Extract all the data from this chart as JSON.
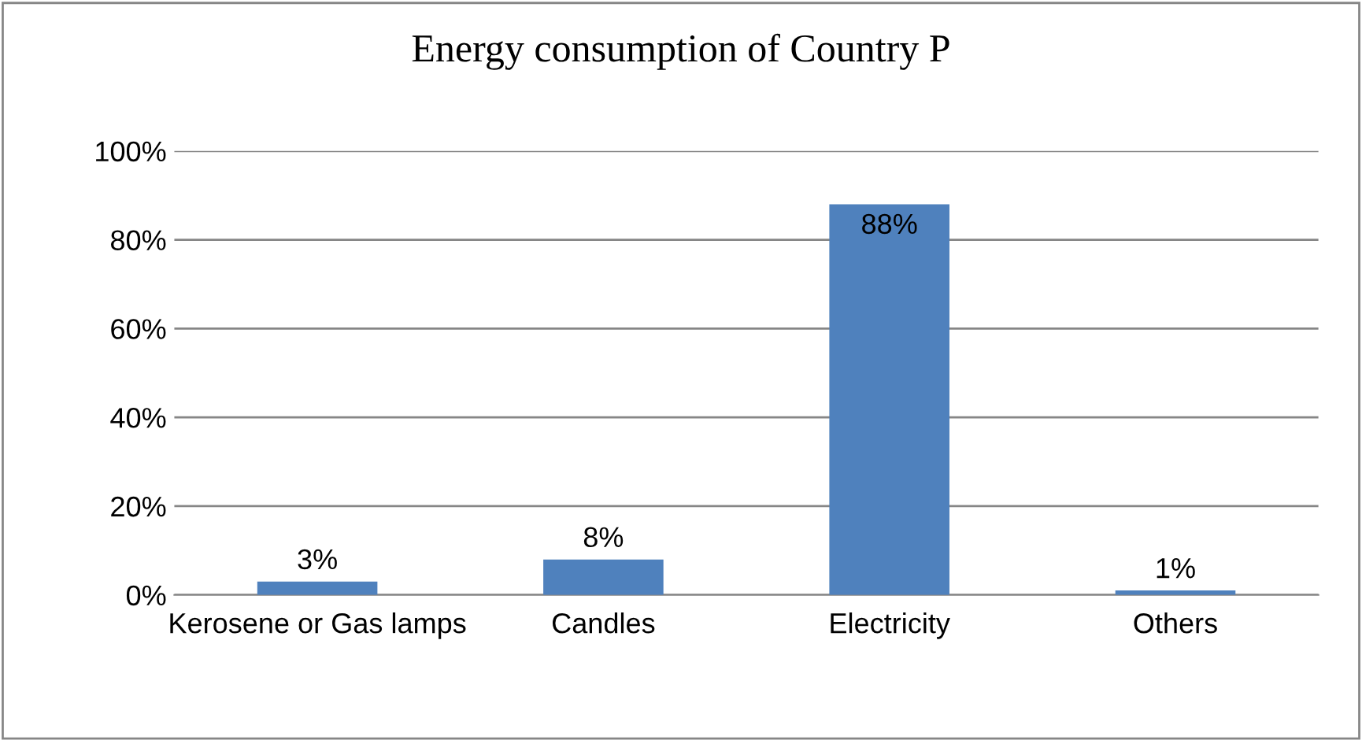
{
  "chart_data": {
    "type": "bar",
    "title": "Energy consumption of Country P",
    "categories": [
      "Kerosene or Gas lamps",
      "Candles",
      "Electricity",
      "Others"
    ],
    "values": [
      3,
      8,
      88,
      1
    ],
    "color": "#4f81bd",
    "value_labels": [
      "3%",
      "8%",
      "88%",
      "1%"
    ],
    "ylim": [
      0,
      100
    ],
    "yticks": [
      {
        "value": 0,
        "label": "0%"
      },
      {
        "value": 20,
        "label": "20%"
      },
      {
        "value": 40,
        "label": "40%"
      },
      {
        "value": 60,
        "label": "60%"
      },
      {
        "value": 80,
        "label": "80%"
      },
      {
        "value": 100,
        "label": "100%"
      }
    ],
    "grid": "y",
    "legend": false
  }
}
